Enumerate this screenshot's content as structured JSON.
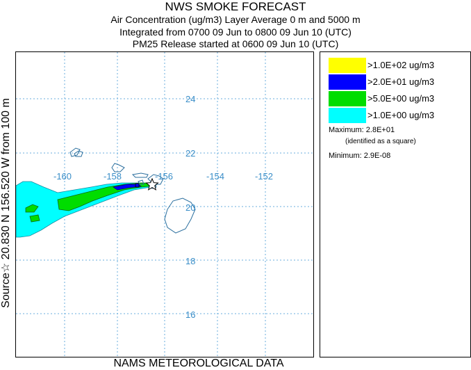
{
  "header": {
    "title": "NWS SMOKE FORECAST",
    "line2": "Air Concentration (ug/m3) Layer Average    0 m and  5000 m",
    "line3": "Integrated from 0700 09 Jun to 0800 09 Jun 10 (UTC)",
    "line4": "PM25 Release started at 0600 09 Jun 10 (UTC)"
  },
  "side_label": "Source☆ 20.830  N 156.520  W    from   100 m",
  "bottom_label": "NAMS METEOROLOGICAL DATA",
  "map": {
    "grid_color": "#6aaedc",
    "label_color": "#3a8ec8",
    "coast_color": "#2b6f9e",
    "lon_labels": [
      "-160",
      "-158",
      "-156",
      "-154",
      "-152"
    ],
    "lat_labels": [
      "24",
      "22",
      "20",
      "18",
      "16"
    ],
    "source_marker": "star-icon"
  },
  "legend": {
    "items": [
      {
        "label": ">1.0E+02 ug/m3",
        "color": "#ffff00"
      },
      {
        "label": ">2.0E+01 ug/m3",
        "color": "#0000ff"
      },
      {
        "label": ">5.0E+00 ug/m3",
        "color": "#00dd00"
      },
      {
        "label": ">1.0E+00 ug/m3",
        "color": "#00ffff"
      }
    ],
    "maximum": "Maximum: 2.8E+01",
    "maximum_note": "(identified as a square)",
    "minimum": "Minimum: 2.9E-08"
  }
}
